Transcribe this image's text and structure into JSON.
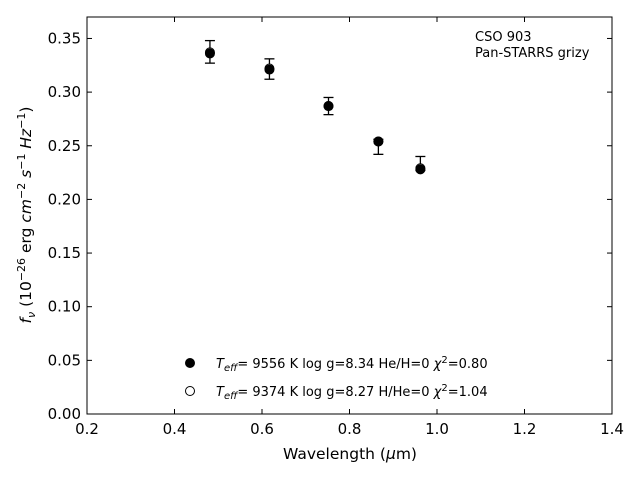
{
  "chart_data": {
    "type": "scatter",
    "xlabel": "Wavelength (μm)",
    "ylabel": "f_ν (10^-26 erg cm^-2 s^-1 Hz^-1)",
    "xlim": [
      0.2,
      1.4
    ],
    "ylim": [
      0.0,
      0.37
    ],
    "xticks": [
      "0.2",
      "0.4",
      "0.6",
      "0.8",
      "1.0",
      "1.2",
      "1.4"
    ],
    "yticks": [
      "0.00",
      "0.05",
      "0.10",
      "0.15",
      "0.20",
      "0.25",
      "0.30",
      "0.35"
    ],
    "grid": false,
    "annotation": [
      "CSO 903",
      "Pan-STARRS grizy"
    ],
    "legend_position": "bottom-center",
    "observed": {
      "x": [
        0.481,
        0.617,
        0.752,
        0.866,
        0.962
      ],
      "y": [
        0.337,
        0.32,
        0.287,
        0.253,
        0.229
      ],
      "yerr_low": [
        0.01,
        0.008,
        0.008,
        0.011,
        0.002
      ],
      "yerr_high": [
        0.011,
        0.011,
        0.008,
        0.003,
        0.011
      ]
    },
    "series": [
      {
        "legend": "T_eff= 9556 K log g=8.34 He/H=0 χ²=0.80",
        "teff": "9556 K",
        "logg": "8.34",
        "comp": "He/H=0",
        "chi2": "0.80",
        "marker": "filled-circle",
        "x": [
          0.481,
          0.617,
          0.752,
          0.866,
          0.962
        ],
        "y": [
          0.336,
          0.321,
          0.287,
          0.254,
          0.228
        ]
      },
      {
        "legend": "T_eff= 9374 K log g=8.27 H/He=0 χ²=1.04",
        "teff": "9374 K",
        "logg": "8.27",
        "comp": "H/He=0",
        "chi2": "1.04",
        "marker": "open-circle",
        "x": [
          0.481,
          0.617,
          0.752,
          0.866,
          0.962
        ],
        "y": [
          0.337,
          0.322,
          0.287,
          0.254,
          0.229
        ]
      }
    ],
    "colors": {
      "marker": "#000000",
      "axes": "#000000",
      "background": "#ffffff"
    }
  }
}
